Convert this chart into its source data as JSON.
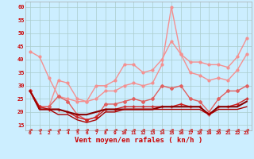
{
  "x": [
    0,
    1,
    2,
    3,
    4,
    5,
    6,
    7,
    8,
    9,
    10,
    11,
    12,
    13,
    14,
    15,
    16,
    17,
    18,
    19,
    20,
    21,
    22,
    23
  ],
  "background_color": "#cceeff",
  "grid_color": "#aacccc",
  "xlabel": "Vent moyen/en rafales ( kn/h )",
  "ylim": [
    13,
    62
  ],
  "yticks": [
    15,
    20,
    25,
    30,
    35,
    40,
    45,
    50,
    55,
    60
  ],
  "series": [
    {
      "y": [
        43,
        41,
        33,
        26,
        25,
        24,
        24,
        30,
        30,
        32,
        38,
        38,
        35,
        36,
        40,
        47,
        42,
        39,
        39,
        38,
        38,
        37,
        41,
        48
      ],
      "color": "#f49090",
      "lw": 1.0,
      "marker": "o",
      "ms": 2.0
    },
    {
      "y": [
        28,
        22,
        22,
        32,
        31,
        25,
        24,
        25,
        28,
        28,
        30,
        31,
        30,
        31,
        38,
        60,
        42,
        35,
        34,
        32,
        33,
        32,
        36,
        42
      ],
      "color": "#f49090",
      "lw": 1.0,
      "marker": "o",
      "ms": 2.0
    },
    {
      "y": [
        28,
        22,
        22,
        26,
        24,
        19,
        17,
        18,
        23,
        23,
        24,
        25,
        24,
        25,
        30,
        29,
        30,
        25,
        24,
        20,
        25,
        28,
        28,
        30
      ],
      "color": "#e06060",
      "lw": 1.0,
      "marker": "D",
      "ms": 2.0
    },
    {
      "y": [
        28,
        22,
        21,
        21,
        20,
        18,
        17,
        18,
        21,
        21,
        22,
        22,
        22,
        22,
        22,
        22,
        23,
        22,
        22,
        19,
        22,
        22,
        23,
        25
      ],
      "color": "#cc2222",
      "lw": 1.0,
      "marker": "+",
      "ms": 3.5
    },
    {
      "y": [
        28,
        21,
        21,
        21,
        20,
        19,
        19,
        20,
        21,
        21,
        21,
        21,
        21,
        21,
        22,
        22,
        22,
        22,
        22,
        19,
        22,
        22,
        22,
        24
      ],
      "color": "#880000",
      "lw": 1.5,
      "marker": null,
      "ms": 0
    },
    {
      "y": [
        28,
        21,
        21,
        19,
        19,
        17,
        16,
        17,
        20,
        20,
        21,
        21,
        21,
        21,
        21,
        21,
        21,
        21,
        21,
        19,
        21,
        21,
        21,
        22
      ],
      "color": "#aa0000",
      "lw": 1.0,
      "marker": null,
      "ms": 0
    },
    {
      "y": [
        13,
        13,
        13,
        13,
        13,
        13,
        13,
        13,
        13,
        13,
        13,
        13,
        13,
        13,
        13,
        13,
        13,
        13,
        13,
        13,
        13,
        13,
        13,
        13
      ],
      "color": "#cc2222",
      "lw": 0.8,
      "marker": "<",
      "ms": 2.5
    }
  ]
}
